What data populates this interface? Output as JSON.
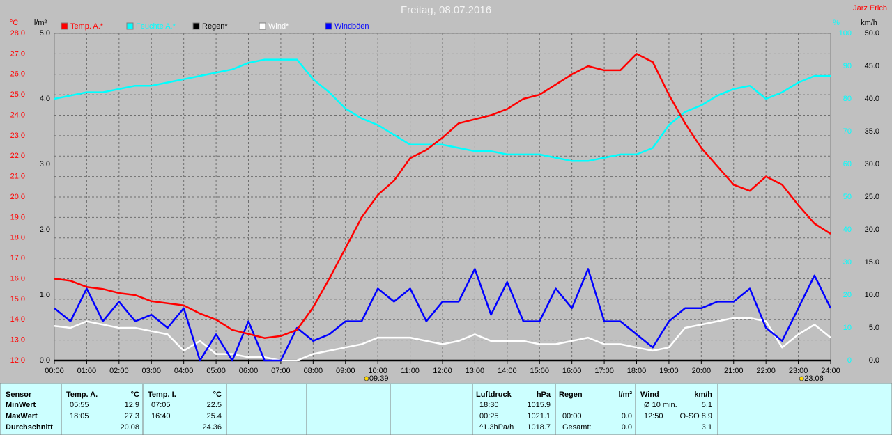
{
  "chart_data": {
    "type": "line",
    "title": "Freitag, 08.07.2016",
    "author": "Jarz Erich",
    "y_label": "°C",
    "y3_label": "l/m²",
    "y2_label": "%",
    "y4_label": "km/h",
    "grid": true,
    "x": [
      0,
      0.5,
      1,
      1.5,
      2,
      2.5,
      3,
      3.5,
      4,
      4.5,
      5,
      5.5,
      6,
      6.5,
      7,
      7.5,
      8,
      8.5,
      9,
      9.5,
      10,
      10.5,
      11,
      11.5,
      12,
      12.5,
      13,
      13.5,
      14,
      14.5,
      15,
      15.5,
      16,
      16.5,
      17,
      17.5,
      18,
      18.5,
      19,
      19.5,
      20,
      20.5,
      21,
      21.5,
      22,
      22.5,
      23,
      23.5,
      24
    ],
    "xlim": [
      0,
      24
    ],
    "xticks": [
      {
        "value": 0,
        "label": "00:00"
      },
      {
        "value": 1,
        "label": "01:00"
      },
      {
        "value": 2,
        "label": "02:00"
      },
      {
        "value": 3,
        "label": "03:00"
      },
      {
        "value": 4,
        "label": "04:00"
      },
      {
        "value": 5,
        "label": "05:00"
      },
      {
        "value": 6,
        "label": "06:00"
      },
      {
        "value": 7,
        "label": "07:00"
      },
      {
        "value": 8,
        "label": "08:00"
      },
      {
        "value": 9,
        "label": "09:00"
      },
      {
        "value": 10,
        "label": "10:00"
      },
      {
        "value": 11,
        "label": "11:00"
      },
      {
        "value": 12,
        "label": "12:00"
      },
      {
        "value": 13,
        "label": "13:00"
      },
      {
        "value": 14,
        "label": "14:00"
      },
      {
        "value": 15,
        "label": "15:00"
      },
      {
        "value": 16,
        "label": "16:00"
      },
      {
        "value": 17,
        "label": "17:00"
      },
      {
        "value": 18,
        "label": "18:00"
      },
      {
        "value": 19,
        "label": "19:00"
      },
      {
        "value": 20,
        "label": "20:00"
      },
      {
        "value": 21,
        "label": "21:00"
      },
      {
        "value": 22,
        "label": "22:00"
      },
      {
        "value": 23,
        "label": "23:00"
      },
      {
        "value": 24,
        "label": "24:00"
      }
    ],
    "ylim": [
      12,
      28
    ],
    "yticks": [
      {
        "value": 12,
        "label": "12.0"
      },
      {
        "value": 13,
        "label": "13.0"
      },
      {
        "value": 14,
        "label": "14.0"
      },
      {
        "value": 15,
        "label": "15.0"
      },
      {
        "value": 16,
        "label": "16.0"
      },
      {
        "value": 17,
        "label": "17.0"
      },
      {
        "value": 18,
        "label": "18.0"
      },
      {
        "value": 19,
        "label": "19.0"
      },
      {
        "value": 20,
        "label": "20.0"
      },
      {
        "value": 21,
        "label": "21.0"
      },
      {
        "value": 22,
        "label": "22.0"
      },
      {
        "value": 23,
        "label": "23.0"
      },
      {
        "value": 24,
        "label": "24.0"
      },
      {
        "value": 25,
        "label": "25.0"
      },
      {
        "value": 26,
        "label": "26.0"
      },
      {
        "value": 27,
        "label": "27.0"
      },
      {
        "value": 28,
        "label": "28.0"
      }
    ],
    "y3lim": [
      0,
      5
    ],
    "y3ticks": [
      {
        "value": 0,
        "label": "0.0"
      },
      {
        "value": 1,
        "label": "1.0"
      },
      {
        "value": 2,
        "label": "2.0"
      },
      {
        "value": 3,
        "label": "3.0"
      },
      {
        "value": 4,
        "label": "4.0"
      },
      {
        "value": 5,
        "label": "5.0"
      }
    ],
    "y2lim": [
      0,
      100
    ],
    "y2ticks": [
      0,
      10,
      20,
      30,
      40,
      50,
      60,
      70,
      80,
      90,
      100
    ],
    "y4lim": [
      0,
      50
    ],
    "y4ticks": [
      {
        "value": 0,
        "label": "0.0"
      },
      {
        "value": 5,
        "label": "5.0"
      },
      {
        "value": 10,
        "label": "10.0"
      },
      {
        "value": 15,
        "label": "15.0"
      },
      {
        "value": 20,
        "label": "20.0"
      },
      {
        "value": 25,
        "label": "25.0"
      },
      {
        "value": 30,
        "label": "30.0"
      },
      {
        "value": 35,
        "label": "35.0"
      },
      {
        "value": 40,
        "label": "40.0"
      },
      {
        "value": 45,
        "label": "45.0"
      },
      {
        "value": 50,
        "label": "50.0"
      }
    ],
    "series": [
      {
        "name": "Temp. A.*",
        "color": "#ff0000",
        "axis": "y",
        "values": [
          16.0,
          15.9,
          15.6,
          15.5,
          15.3,
          15.2,
          14.9,
          14.8,
          14.7,
          14.3,
          14.0,
          13.5,
          13.3,
          13.1,
          13.2,
          13.5,
          14.6,
          16.0,
          17.5,
          19.0,
          20.1,
          20.8,
          21.9,
          22.3,
          22.9,
          23.6,
          23.8,
          24.0,
          24.3,
          24.8,
          25.0,
          25.5,
          26.0,
          26.4,
          26.2,
          26.2,
          27.0,
          26.6,
          25.0,
          23.6,
          22.4,
          21.5,
          20.6,
          20.3,
          21.0,
          20.6,
          19.6,
          18.7,
          18.2
        ]
      },
      {
        "name": "Feuchte A.*",
        "color": "#00ffff",
        "axis": "y2",
        "values": [
          80,
          81,
          82,
          82,
          83,
          84,
          84,
          85,
          86,
          87,
          88,
          89,
          91,
          92,
          92,
          92,
          86,
          82,
          77,
          74,
          72,
          69,
          66,
          66,
          66,
          65,
          64,
          64,
          63,
          63,
          63,
          62,
          61,
          61,
          62,
          63,
          63,
          65,
          72,
          76,
          78,
          81,
          83,
          84,
          80,
          82,
          85,
          87,
          87
        ]
      },
      {
        "name": "Regen*",
        "color": "#000000",
        "axis": "y3",
        "values": [
          0,
          0,
          0,
          0,
          0,
          0,
          0,
          0,
          0,
          0,
          0,
          0,
          0,
          0,
          0,
          0,
          0,
          0,
          0,
          0,
          0,
          0,
          0,
          0,
          0,
          0,
          0,
          0,
          0,
          0,
          0,
          0,
          0,
          0,
          0,
          0,
          0,
          0,
          0,
          0,
          0,
          0,
          0,
          0,
          0,
          0,
          0,
          0,
          0
        ]
      },
      {
        "name": "Wind*",
        "color": "#ffffff",
        "axis": "y4",
        "values": [
          5.3,
          5,
          6,
          5.5,
          5,
          5,
          4.5,
          4,
          1.5,
          3,
          1,
          1,
          0.5,
          0.5,
          0,
          0,
          1,
          1.5,
          2,
          2.5,
          3.5,
          3.5,
          3.5,
          3,
          2.5,
          3,
          4,
          3,
          3,
          3,
          2.5,
          2.5,
          3,
          3.5,
          2.5,
          2.5,
          2,
          1.5,
          2,
          5,
          5.5,
          6,
          6.5,
          6.5,
          6,
          2,
          4,
          5.5,
          3.5
        ]
      },
      {
        "name": "Windböen",
        "color": "#0000ff",
        "axis": "y4",
        "values": [
          8,
          6,
          11,
          6,
          9,
          6,
          7,
          5,
          8,
          0,
          4,
          0,
          6,
          0,
          0,
          5,
          3,
          4,
          6,
          6,
          11,
          9,
          11,
          6,
          9,
          9,
          14,
          7,
          12,
          6,
          6,
          11,
          8,
          14,
          6,
          6,
          4,
          2,
          6,
          8,
          8,
          9,
          9,
          11,
          5,
          3,
          8,
          13,
          8
        ]
      }
    ],
    "annotations": [
      {
        "x": 9.65,
        "label": "09:39"
      },
      {
        "x": 23.1,
        "label": "23:06"
      }
    ]
  },
  "stats": {
    "label_column": [
      "Sensor",
      "MinWert",
      "MaxWert",
      "Durchschnitt"
    ],
    "groups": [
      {
        "title": "Temp. A.",
        "unit": "°C",
        "rows": [
          [
            "05:55",
            "12.9"
          ],
          [
            "18:05",
            "27.3"
          ],
          [
            "20.08"
          ]
        ]
      },
      {
        "title": "Temp. I.",
        "unit": "°C",
        "rows": [
          [
            "07:05",
            "22.5"
          ],
          [
            "16:40",
            "25.4"
          ],
          [
            "24.36"
          ]
        ]
      },
      {
        "title": "Luftdruck",
        "unit": "hPa",
        "rows": [
          [
            "18:30",
            "1015.9"
          ],
          [
            "00:25",
            "1021.1"
          ],
          [
            "^1.3hPa/h",
            "1018.7"
          ]
        ]
      },
      {
        "title": "Regen",
        "unit": "l/m²",
        "rows": [
          null,
          [
            "00:00",
            "0.0"
          ],
          [
            "Gesamt:",
            "0.0"
          ]
        ]
      },
      {
        "title": "Wind",
        "unit": "km/h",
        "rows": [
          [
            "Ø 10 min.",
            "5.1"
          ],
          [
            "12:50",
            "O-SO 8.9"
          ],
          [
            "3.1"
          ]
        ]
      }
    ]
  }
}
